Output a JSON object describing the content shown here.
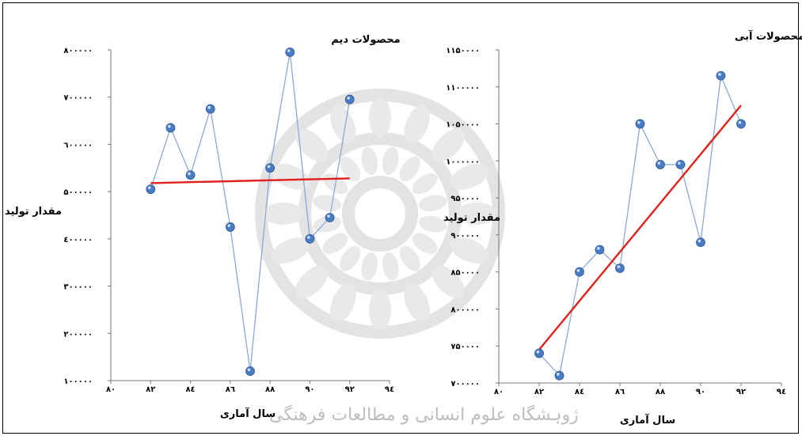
{
  "watermark_text": "ژوہشگاه علوم انسانی و مطالعات فرهنگی",
  "chart_data": [
    {
      "type": "line",
      "title": "محصولات دیم",
      "xlabel": "سال آماری",
      "ylabel": "مقدار تولید",
      "x_ticks": [
        "۸۰",
        "۸۲",
        "۸٤",
        "۸٦",
        "۸۸",
        "۹۰",
        "۹۲",
        "۹٤"
      ],
      "y_ticks": [
        "۱۰۰۰۰۰",
        "۲۰۰۰۰۰",
        "۳۰۰۰۰۰",
        "٤۰۰۰۰۰",
        "۵۰۰۰۰۰",
        "٦۰۰۰۰۰",
        "۷۰۰۰۰۰",
        "۸۰۰۰۰۰"
      ],
      "xlim": [
        80,
        94
      ],
      "ylim": [
        100000,
        800000
      ],
      "series": [
        {
          "x": [
            82,
            83,
            84,
            85,
            86,
            87,
            88,
            89,
            90,
            91,
            92
          ],
          "values": [
            505000,
            635000,
            535000,
            675000,
            425000,
            120000,
            550000,
            795000,
            400000,
            445000,
            695000
          ],
          "color": "#8aaad6"
        }
      ],
      "trend": {
        "x": [
          82,
          92
        ],
        "values": [
          518000,
          528000
        ],
        "color": "#e0201b"
      }
    },
    {
      "type": "line",
      "title": "محصولات آبی",
      "xlabel": "سال آماری",
      "ylabel": "مقدار تولید",
      "x_ticks": [
        "۸۰",
        "۸۲",
        "۸٤",
        "۸٦",
        "۸۸",
        "۹۰",
        "۹۲",
        "۹٤"
      ],
      "y_ticks": [
        "۷۰۰۰۰۰",
        "۷۵۰۰۰۰",
        "۸۰۰۰۰۰",
        "۸۵۰۰۰۰",
        "۹۰۰۰۰۰",
        "۹۵۰۰۰۰",
        "۱۰۰۰۰۰۰",
        "۱۰۵۰۰۰۰",
        "۱۱۰۰۰۰۰",
        "۱۱۵۰۰۰۰"
      ],
      "xlim": [
        80,
        94
      ],
      "ylim": [
        700000,
        1150000
      ],
      "series": [
        {
          "x": [
            82,
            83,
            84,
            85,
            86,
            87,
            88,
            89,
            90,
            91,
            92
          ],
          "values": [
            740000,
            710000,
            850000,
            880000,
            855000,
            1050000,
            995000,
            995000,
            890000,
            1115000,
            1050000
          ],
          "color": "#8aaad6"
        }
      ],
      "trend": {
        "x": [
          82,
          92
        ],
        "values": [
          745000,
          1075000
        ],
        "color": "#e0201b"
      }
    }
  ]
}
